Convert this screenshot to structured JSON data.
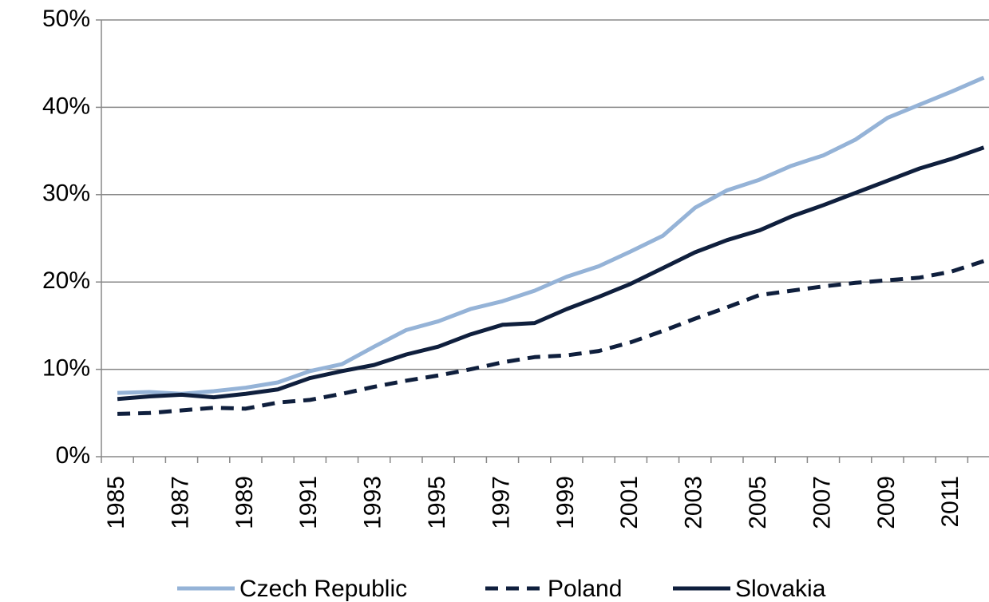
{
  "chart_data": {
    "type": "line",
    "categories": [
      "1985",
      null,
      "1987",
      null,
      "1989",
      null,
      "1991",
      null,
      "1993",
      null,
      "1995",
      null,
      "1997",
      null,
      "1999",
      null,
      "2001",
      null,
      "2003",
      null,
      "2005",
      null,
      "2007",
      null,
      "2009",
      null,
      "2011",
      null
    ],
    "series": [
      {
        "name": "Czech Republic",
        "color": "#95b3d7",
        "dash": "solid",
        "values": [
          7.3,
          7.4,
          7.2,
          7.5,
          7.9,
          8.5,
          9.8,
          10.6,
          12.6,
          14.5,
          15.5,
          16.9,
          17.8,
          19.0,
          20.6,
          21.8,
          23.5,
          25.3,
          28.5,
          30.5,
          31.7,
          33.3,
          34.5,
          36.3,
          38.8,
          40.3,
          41.8,
          43.4
        ]
      },
      {
        "name": "Poland",
        "color": "#0f1f3d",
        "dash": "dashed",
        "values": [
          4.9,
          5.0,
          5.3,
          5.6,
          5.5,
          6.2,
          6.5,
          7.2,
          8.0,
          8.7,
          9.3,
          10.0,
          10.8,
          11.4,
          11.6,
          12.1,
          13.1,
          14.4,
          15.8,
          17.1,
          18.5,
          19.0,
          19.5,
          19.9,
          20.2,
          20.5,
          21.2,
          22.4
        ]
      },
      {
        "name": "Slovakia",
        "color": "#0f1f3d",
        "dash": "solid",
        "values": [
          6.6,
          6.9,
          7.1,
          6.8,
          7.2,
          7.7,
          9.0,
          9.8,
          10.5,
          11.7,
          12.6,
          14.0,
          15.1,
          15.3,
          16.9,
          18.3,
          19.8,
          21.6,
          23.4,
          24.8,
          25.9,
          27.5,
          28.8,
          30.2,
          31.6,
          33.0,
          34.1,
          35.4
        ]
      }
    ],
    "ylim": [
      0,
      50
    ],
    "yticks": [
      {
        "value": 0,
        "label": "0%"
      },
      {
        "value": 10,
        "label": "10%"
      },
      {
        "value": 20,
        "label": "20%"
      },
      {
        "value": 30,
        "label": "30%"
      },
      {
        "value": 40,
        "label": "40%"
      },
      {
        "value": 50,
        "label": "50%"
      }
    ],
    "grid": true,
    "legend": "bottom"
  }
}
